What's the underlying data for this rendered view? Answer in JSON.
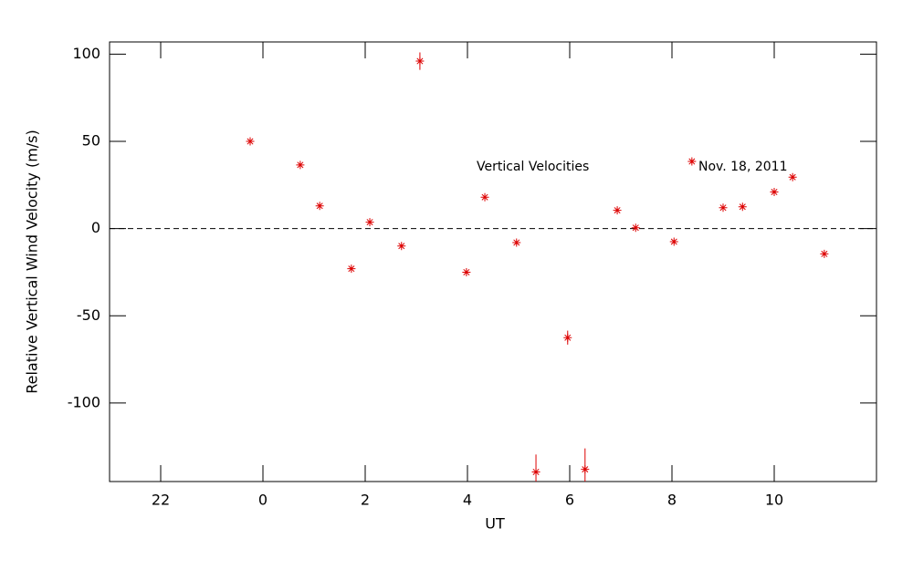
{
  "chart_data": {
    "type": "scatter",
    "xlabel": "UT",
    "ylabel": "Relative Vertical Wind Velocity (m/s)",
    "annotations": [
      "Vertical Velocities",
      "Nov. 18, 2011"
    ],
    "xlim": [
      -3,
      12
    ],
    "xticks": [
      {
        "value": -2,
        "label": "22"
      },
      0,
      2,
      4,
      6,
      8,
      10
    ],
    "ylim": [
      -145,
      107
    ],
    "yticks": [
      -100,
      -50,
      0,
      50,
      100
    ],
    "zero_line": 0,
    "series": [
      {
        "color": "#dd0000",
        "x": [
          -0.25,
          0.73,
          1.11,
          1.73,
          2.09,
          2.71,
          3.07,
          3.98,
          4.34,
          4.96,
          5.34,
          5.96,
          6.3,
          6.93,
          7.29,
          8.04,
          8.39,
          9.0,
          9.38,
          10.0,
          10.36,
          10.98
        ],
        "values": [
          50,
          36.5,
          13,
          -23,
          3.7,
          -10,
          96,
          -25,
          18,
          -8,
          -139.5,
          -62.5,
          -138,
          10.5,
          0.5,
          -7.5,
          38.5,
          12,
          12.5,
          21,
          29.5,
          -14.5
        ],
        "errors": [
          1,
          1,
          1,
          1,
          1,
          1,
          5,
          1,
          1,
          1,
          10,
          4,
          12,
          1,
          1,
          1,
          1,
          1,
          1,
          1,
          1,
          1
        ]
      }
    ]
  }
}
